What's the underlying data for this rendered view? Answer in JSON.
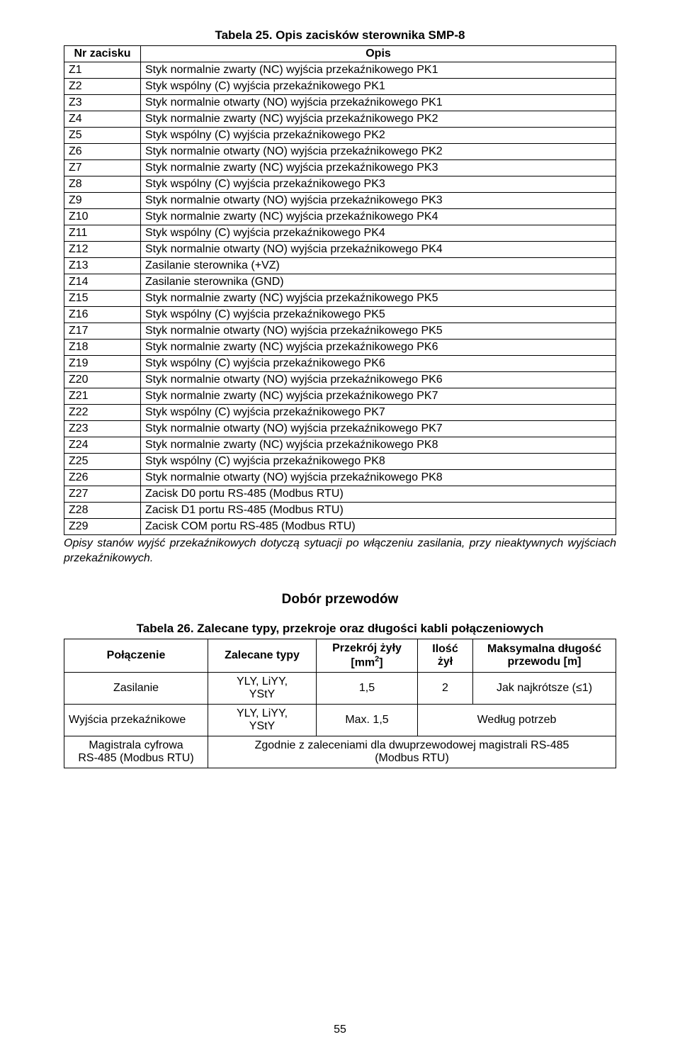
{
  "table1": {
    "caption": "Tabela 25. Opis zacisków sterownika SMP-8",
    "headers": [
      "Nr zacisku",
      "Opis"
    ],
    "rows": [
      [
        "Z1",
        "Styk normalnie zwarty (NC) wyjścia przekaźnikowego PK1"
      ],
      [
        "Z2",
        "Styk wspólny (C) wyjścia przekaźnikowego PK1"
      ],
      [
        "Z3",
        "Styk normalnie otwarty (NO) wyjścia przekaźnikowego PK1"
      ],
      [
        "Z4",
        "Styk normalnie zwarty (NC) wyjścia przekaźnikowego PK2"
      ],
      [
        "Z5",
        "Styk wspólny (C) wyjścia przekaźnikowego PK2"
      ],
      [
        "Z6",
        "Styk normalnie otwarty (NO) wyjścia przekaźnikowego PK2"
      ],
      [
        "Z7",
        "Styk normalnie zwarty (NC) wyjścia przekaźnikowego PK3"
      ],
      [
        "Z8",
        "Styk wspólny (C) wyjścia przekaźnikowego PK3"
      ],
      [
        "Z9",
        "Styk normalnie otwarty (NO) wyjścia przekaźnikowego PK3"
      ],
      [
        "Z10",
        "Styk normalnie zwarty (NC) wyjścia przekaźnikowego PK4"
      ],
      [
        "Z11",
        "Styk wspólny (C) wyjścia przekaźnikowego PK4"
      ],
      [
        "Z12",
        "Styk normalnie otwarty (NO) wyjścia przekaźnikowego PK4"
      ],
      [
        "Z13",
        "Zasilanie sterownika (+VZ)"
      ],
      [
        "Z14",
        "Zasilanie sterownika (GND)"
      ],
      [
        "Z15",
        "Styk normalnie zwarty (NC) wyjścia przekaźnikowego PK5"
      ],
      [
        "Z16",
        "Styk wspólny (C) wyjścia przekaźnikowego PK5"
      ],
      [
        "Z17",
        "Styk normalnie otwarty (NO) wyjścia przekaźnikowego PK5"
      ],
      [
        "Z18",
        "Styk normalnie zwarty (NC) wyjścia przekaźnikowego PK6"
      ],
      [
        "Z19",
        "Styk wspólny (C) wyjścia przekaźnikowego PK6"
      ],
      [
        "Z20",
        "Styk normalnie otwarty (NO) wyjścia przekaźnikowego PK6"
      ],
      [
        "Z21",
        "Styk normalnie zwarty (NC) wyjścia przekaźnikowego PK7"
      ],
      [
        "Z22",
        "Styk wspólny (C) wyjścia przekaźnikowego PK7"
      ],
      [
        "Z23",
        "Styk normalnie otwarty (NO) wyjścia przekaźnikowego PK7"
      ],
      [
        "Z24",
        "Styk normalnie zwarty (NC) wyjścia przekaźnikowego PK8"
      ],
      [
        "Z25",
        "Styk wspólny (C) wyjścia przekaźnikowego PK8"
      ],
      [
        "Z26",
        "Styk normalnie otwarty (NO) wyjścia przekaźnikowego PK8"
      ],
      [
        "Z27",
        "Zacisk D0 portu RS-485 (Modbus RTU)"
      ],
      [
        "Z28",
        "Zacisk D1 portu RS-485 (Modbus RTU)"
      ],
      [
        "Z29",
        "Zacisk COM portu RS-485 (Modbus RTU)"
      ]
    ],
    "note": "Opisy stanów wyjść przekaźnikowych dotyczą sytuacji po włączeniu zasilania, przy nieaktywnych wyjściach przekaźnikowych."
  },
  "section": {
    "heading": "Dobór przewodów"
  },
  "table2": {
    "caption": "Tabela 26. Zalecane typy, przekroje oraz długości kabli połączeniowych",
    "headers": {
      "c1": "Połączenie",
      "c2": "Zalecane typy",
      "c3_line1": "Przekrój żyły",
      "c3_line2": "[mm",
      "c3_line3": "]",
      "c4_line1": "Ilość",
      "c4_line2": "żył",
      "c5_line1": "Maksymalna długość",
      "c5_line2": "przewodu [m]"
    },
    "rows": [
      {
        "c1": "Zasilanie",
        "c2_line1": "YLY, LiYY,",
        "c2_line2": "YStY",
        "c3": "1,5",
        "c4": "2",
        "c5": "Jak najkrótsze (≤1)"
      },
      {
        "c1": "Wyjścia przekaźnikowe",
        "c2_line1": "YLY, LiYY,",
        "c2_line2": "YStY",
        "c3": "Max. 1,5",
        "c5": "Według potrzeb",
        "merged_c4c5": true
      },
      {
        "c1_line1": "Magistrala cyfrowa",
        "c1_line2": "RS-485 (Modbus RTU)",
        "merged_line1": "Zgodnie z zaleceniami dla dwuprzewodowej magistrali RS-485",
        "merged_line2": "(Modbus RTU)"
      }
    ]
  },
  "page_number": "55"
}
